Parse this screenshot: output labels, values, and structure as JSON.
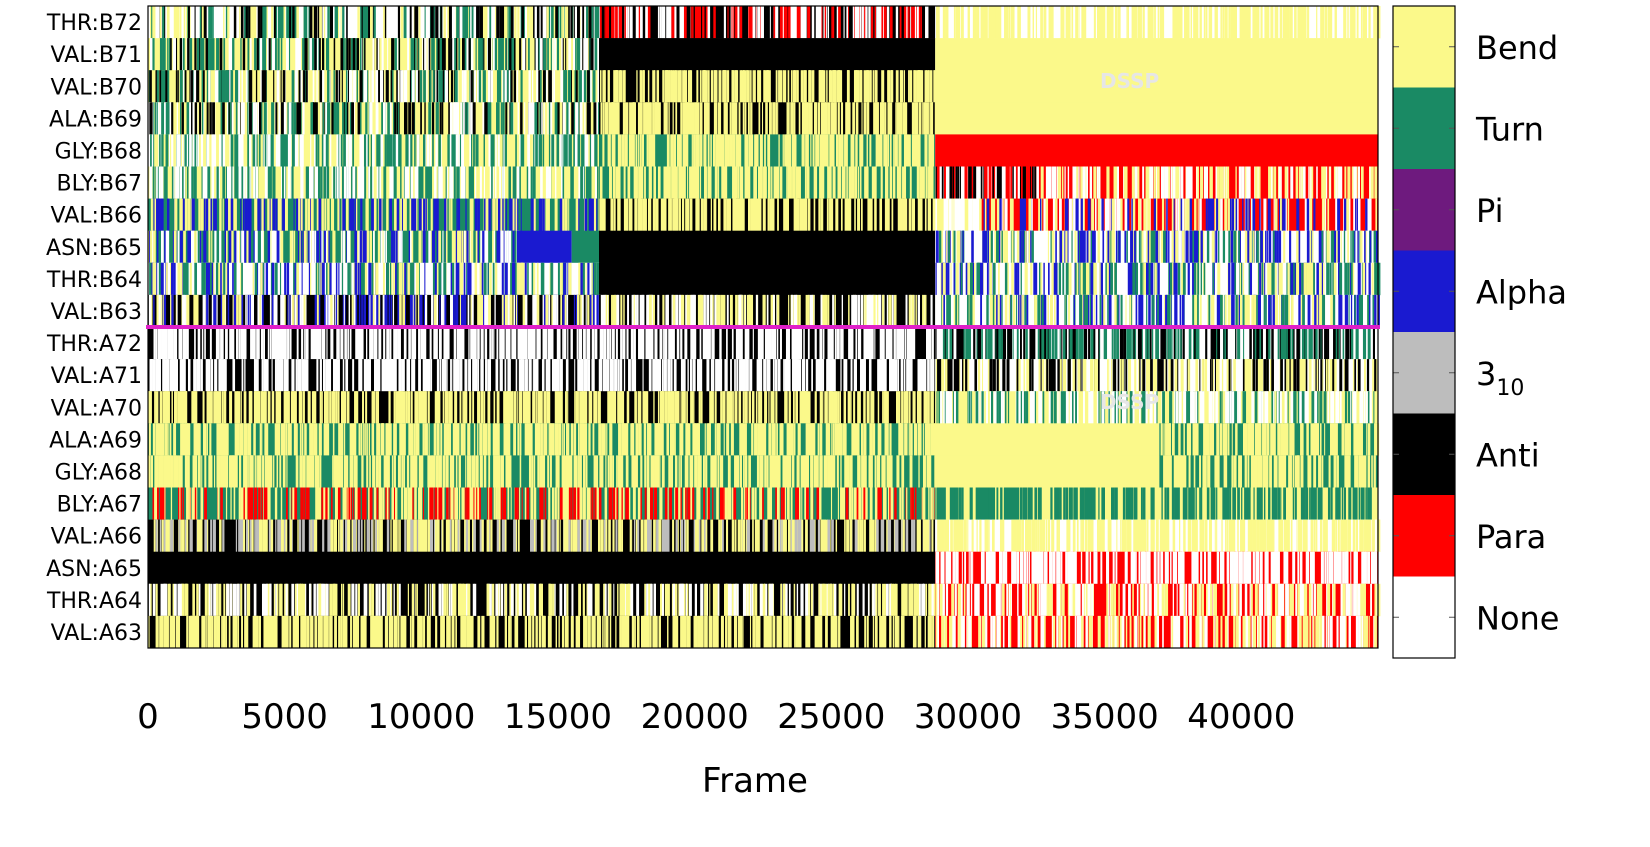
{
  "chart_data": {
    "type": "heatmap",
    "title": "",
    "xlabel": "Frame",
    "ylabel": "",
    "xlim": [
      0,
      45000
    ],
    "x_ticks": [
      0,
      5000,
      10000,
      15000,
      20000,
      25000,
      30000,
      35000,
      40000
    ],
    "x_tick_labels": [
      "0",
      "5000",
      "10000",
      "15000",
      "20000",
      "25000",
      "30000",
      "35000",
      "40000"
    ],
    "residues": [
      "THR:B72",
      "VAL:B71",
      "VAL:B70",
      "ALA:B69",
      "GLY:B68",
      "BLY:B67",
      "VAL:B66",
      "ASN:B65",
      "THR:B64",
      "VAL:B63",
      "THR:A72",
      "VAL:A71",
      "VAL:A70",
      "ALA:A69",
      "GLY:A68",
      "BLY:A67",
      "VAL:A66",
      "ASN:A65",
      "THR:A64",
      "VAL:A63"
    ],
    "states": [
      "Bend",
      "Turn",
      "Pi",
      "Alpha",
      "3_10",
      "Anti",
      "Para",
      "None"
    ],
    "colorbar": [
      {
        "label": "Bend",
        "main": "Bend",
        "sub": "",
        "color": "#fbf98a"
      },
      {
        "label": "Turn",
        "main": "Turn",
        "sub": "",
        "color": "#1a8a64"
      },
      {
        "label": "Pi",
        "main": "Pi",
        "sub": "",
        "color": "#6e1a7e"
      },
      {
        "label": "Alpha",
        "main": "Alpha",
        "sub": "",
        "color": "#1a1ad0"
      },
      {
        "label": "3_10",
        "main": "3",
        "sub": "10",
        "color": "#bdbdbd"
      },
      {
        "label": "Anti",
        "main": "Anti",
        "sub": "",
        "color": "#000000"
      },
      {
        "label": "Para",
        "main": "Para",
        "sub": "",
        "color": "#ff0000"
      },
      {
        "label": "None",
        "main": "None",
        "sub": "",
        "color": "#ffffff"
      }
    ],
    "watermark": "DSSP",
    "chain_separator_color": "#e020c8",
    "segments": [
      {
        "residue": "THR:B72",
        "blocks": [
          {
            "start": 0,
            "end": 16500,
            "state": "None",
            "noise": [
              "Bend",
              "Anti",
              "Turn"
            ]
          },
          {
            "start": 16500,
            "end": 28800,
            "state": "Anti",
            "noise": [
              "None",
              "Para"
            ]
          },
          {
            "start": 28800,
            "end": 45000,
            "state": "None",
            "noise": [
              "Bend"
            ]
          }
        ]
      },
      {
        "residue": "VAL:B71",
        "blocks": [
          {
            "start": 0,
            "end": 16500,
            "state": "Bend",
            "noise": [
              "None",
              "Anti",
              "Turn"
            ]
          },
          {
            "start": 16500,
            "end": 28800,
            "state": "Anti",
            "noise": []
          },
          {
            "start": 28800,
            "end": 45000,
            "state": "Bend",
            "noise": []
          }
        ]
      },
      {
        "residue": "VAL:B70",
        "blocks": [
          {
            "start": 0,
            "end": 16500,
            "state": "Bend",
            "noise": [
              "None",
              "Turn",
              "Anti"
            ]
          },
          {
            "start": 16500,
            "end": 28800,
            "state": "Anti",
            "noise": [
              "Bend"
            ]
          },
          {
            "start": 28800,
            "end": 45000,
            "state": "Bend",
            "noise": []
          }
        ]
      },
      {
        "residue": "ALA:B69",
        "blocks": [
          {
            "start": 0,
            "end": 16500,
            "state": "Bend",
            "noise": [
              "Turn",
              "None",
              "Anti"
            ]
          },
          {
            "start": 16500,
            "end": 28800,
            "state": "Anti",
            "noise": [
              "Bend"
            ]
          },
          {
            "start": 28800,
            "end": 45000,
            "state": "Bend",
            "noise": []
          }
        ]
      },
      {
        "residue": "GLY:B68",
        "blocks": [
          {
            "start": 0,
            "end": 16500,
            "state": "Bend",
            "noise": [
              "Turn",
              "None"
            ]
          },
          {
            "start": 16500,
            "end": 28800,
            "state": "Turn",
            "noise": [
              "Bend"
            ]
          },
          {
            "start": 28800,
            "end": 45000,
            "state": "Para",
            "noise": []
          }
        ]
      },
      {
        "residue": "BLY:B67",
        "blocks": [
          {
            "start": 0,
            "end": 16500,
            "state": "Bend",
            "noise": [
              "Turn",
              "None"
            ]
          },
          {
            "start": 16500,
            "end": 28800,
            "state": "Turn",
            "noise": [
              "Bend"
            ]
          },
          {
            "start": 28800,
            "end": 32500,
            "state": "None",
            "noise": [
              "Para",
              "Anti"
            ]
          },
          {
            "start": 32500,
            "end": 45000,
            "state": "Para",
            "noise": [
              "None",
              "Bend"
            ]
          }
        ]
      },
      {
        "residue": "VAL:B66",
        "blocks": [
          {
            "start": 0,
            "end": 16500,
            "state": "Turn",
            "noise": [
              "Bend",
              "Alpha"
            ]
          },
          {
            "start": 16500,
            "end": 28800,
            "state": "Anti",
            "noise": [
              "Bend"
            ]
          },
          {
            "start": 28800,
            "end": 30500,
            "state": "Bend",
            "noise": [
              "None"
            ]
          },
          {
            "start": 30500,
            "end": 45000,
            "state": "Para",
            "noise": [
              "None",
              "Bend",
              "Alpha"
            ]
          }
        ]
      },
      {
        "residue": "ASN:B65",
        "blocks": [
          {
            "start": 0,
            "end": 13500,
            "state": "Turn",
            "noise": [
              "Bend",
              "Alpha",
              "None"
            ]
          },
          {
            "start": 13500,
            "end": 15500,
            "state": "Alpha",
            "noise": []
          },
          {
            "start": 15500,
            "end": 16500,
            "state": "Turn",
            "noise": []
          },
          {
            "start": 16500,
            "end": 28800,
            "state": "Anti",
            "noise": []
          },
          {
            "start": 28800,
            "end": 45000,
            "state": "None",
            "noise": [
              "Turn",
              "Alpha",
              "Bend"
            ]
          }
        ]
      },
      {
        "residue": "THR:B64",
        "blocks": [
          {
            "start": 0,
            "end": 16500,
            "state": "None",
            "noise": [
              "Alpha",
              "Bend",
              "Turn"
            ]
          },
          {
            "start": 16500,
            "end": 28800,
            "state": "Anti",
            "noise": []
          },
          {
            "start": 28800,
            "end": 45000,
            "state": "None",
            "noise": [
              "Turn",
              "Alpha",
              "Bend"
            ]
          }
        ]
      },
      {
        "residue": "VAL:B63",
        "blocks": [
          {
            "start": 0,
            "end": 16500,
            "state": "Anti",
            "noise": [
              "Alpha",
              "Bend",
              "None"
            ]
          },
          {
            "start": 16500,
            "end": 28800,
            "state": "Anti",
            "noise": [
              "None",
              "Bend"
            ]
          },
          {
            "start": 28800,
            "end": 45000,
            "state": "None",
            "noise": [
              "Bend",
              "Alpha",
              "Turn"
            ]
          }
        ]
      },
      {
        "residue": "THR:A72",
        "blocks": [
          {
            "start": 0,
            "end": 28800,
            "state": "Anti",
            "noise": [
              "None"
            ]
          },
          {
            "start": 28800,
            "end": 45000,
            "state": "None",
            "noise": [
              "Turn",
              "Anti"
            ]
          }
        ]
      },
      {
        "residue": "VAL:A71",
        "blocks": [
          {
            "start": 0,
            "end": 28800,
            "state": "Anti",
            "noise": [
              "None"
            ]
          },
          {
            "start": 28800,
            "end": 45000,
            "state": "None",
            "noise": [
              "Anti",
              "Bend"
            ]
          }
        ]
      },
      {
        "residue": "VAL:A70",
        "blocks": [
          {
            "start": 0,
            "end": 28800,
            "state": "Anti",
            "noise": [
              "Bend"
            ]
          },
          {
            "start": 28800,
            "end": 45000,
            "state": "Bend",
            "noise": [
              "None",
              "Turn"
            ]
          }
        ]
      },
      {
        "residue": "ALA:A69",
        "blocks": [
          {
            "start": 0,
            "end": 28800,
            "state": "Turn",
            "noise": [
              "Bend"
            ]
          },
          {
            "start": 28800,
            "end": 37000,
            "state": "Bend",
            "noise": []
          },
          {
            "start": 37000,
            "end": 45000,
            "state": "Turn",
            "noise": [
              "Bend"
            ]
          }
        ]
      },
      {
        "residue": "GLY:A68",
        "blocks": [
          {
            "start": 0,
            "end": 28800,
            "state": "Turn",
            "noise": [
              "Bend"
            ]
          },
          {
            "start": 28800,
            "end": 37000,
            "state": "Bend",
            "noise": []
          },
          {
            "start": 37000,
            "end": 45000,
            "state": "Turn",
            "noise": [
              "Bend"
            ]
          }
        ]
      },
      {
        "residue": "BLY:A67",
        "blocks": [
          {
            "start": 0,
            "end": 28800,
            "state": "Turn",
            "noise": [
              "Bend",
              "Para"
            ]
          },
          {
            "start": 28800,
            "end": 45000,
            "state": "Bend",
            "noise": [
              "Turn"
            ]
          }
        ]
      },
      {
        "residue": "VAL:A66",
        "blocks": [
          {
            "start": 0,
            "end": 28800,
            "state": "Anti",
            "noise": [
              "Bend",
              "3_10"
            ]
          },
          {
            "start": 28800,
            "end": 45000,
            "state": "None",
            "noise": [
              "Bend"
            ]
          }
        ]
      },
      {
        "residue": "ASN:A65",
        "blocks": [
          {
            "start": 0,
            "end": 28800,
            "state": "Anti",
            "noise": []
          },
          {
            "start": 28800,
            "end": 45000,
            "state": "Para",
            "noise": [
              "None"
            ]
          }
        ]
      },
      {
        "residue": "THR:A64",
        "blocks": [
          {
            "start": 0,
            "end": 28800,
            "state": "Anti",
            "noise": [
              "Bend",
              "None"
            ]
          },
          {
            "start": 28800,
            "end": 45000,
            "state": "Para",
            "noise": [
              "None",
              "Bend"
            ]
          }
        ]
      },
      {
        "residue": "VAL:A63",
        "blocks": [
          {
            "start": 0,
            "end": 28800,
            "state": "Anti",
            "noise": [
              "Bend"
            ]
          },
          {
            "start": 28800,
            "end": 45000,
            "state": "Para",
            "noise": [
              "Bend",
              "None"
            ]
          }
        ]
      }
    ]
  }
}
